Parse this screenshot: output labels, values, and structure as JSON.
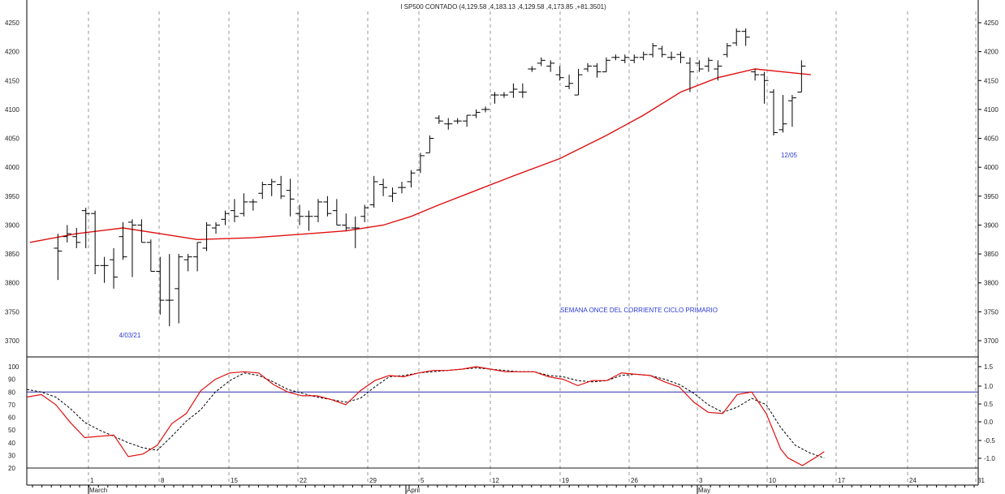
{
  "chart_data": {
    "type": "ohlc",
    "title": "I SP500 CONTADO (4,129.58 ,4,183.13 ,4,129.58 ,4,173.85 ,+81.3501)",
    "x_month_labels": [
      "March",
      "April",
      "May"
    ],
    "x_day_labels": [
      "1",
      "8",
      "15",
      "22",
      "29",
      "5",
      "12",
      "19",
      "26",
      "3",
      "10",
      "17",
      "24",
      "31"
    ],
    "price_axis": {
      "ylim": [
        3670,
        4280
      ],
      "ticks": [
        3700,
        3750,
        3800,
        3850,
        3900,
        3950,
        4000,
        4050,
        4100,
        4150,
        4200,
        4250
      ]
    },
    "annotations": [
      "4/03/21",
      "12/05",
      "SEMANA ONCE DEL CORRIENTE CICLO PRIMARIO"
    ],
    "colors": {
      "ohlc": "#000000",
      "moving_average": "#e01010",
      "stoch_k": "#e01010",
      "stoch_d": "#000000",
      "levels": "#2a2aa8",
      "annotation": "#2a3bd6"
    },
    "ohlc": [
      [
        3,
        3860,
        3885,
        3805,
        3855
      ],
      [
        4,
        3880,
        3900,
        3870,
        3885
      ],
      [
        5,
        3880,
        3895,
        3860,
        3870
      ],
      [
        6,
        3925,
        3930,
        3860,
        3920
      ],
      [
        7,
        3920,
        3925,
        3815,
        3830
      ],
      [
        8,
        3830,
        3845,
        3800,
        3830
      ],
      [
        9,
        3840,
        3860,
        3790,
        3810
      ],
      [
        10,
        3880,
        3905,
        3840,
        3845
      ],
      [
        11,
        3905,
        3910,
        3810,
        3900
      ],
      [
        12,
        3900,
        3910,
        3870,
        3870
      ],
      [
        13,
        3870,
        3875,
        3820,
        3820
      ],
      [
        14,
        3820,
        3845,
        3745,
        3770
      ],
      [
        15,
        3770,
        3850,
        3725,
        3770
      ],
      [
        16,
        3790,
        3850,
        3730,
        3845
      ],
      [
        17,
        3840,
        3850,
        3820,
        3845
      ],
      [
        18,
        3845,
        3870,
        3820,
        3870
      ],
      [
        19,
        3860,
        3905,
        3855,
        3900
      ],
      [
        20,
        3895,
        3905,
        3885,
        3900
      ],
      [
        21,
        3910,
        3925,
        3900,
        3920
      ],
      [
        22,
        3925,
        3945,
        3905,
        3915
      ],
      [
        23,
        3920,
        3955,
        3915,
        3940
      ],
      [
        24,
        3940,
        3945,
        3925,
        3940
      ],
      [
        25,
        3955,
        3975,
        3945,
        3970
      ],
      [
        26,
        3970,
        3980,
        3950,
        3975
      ],
      [
        27,
        3970,
        3985,
        3945,
        3950
      ],
      [
        28,
        3960,
        3980,
        3915,
        3945
      ],
      [
        29,
        3920,
        3935,
        3900,
        3915
      ],
      [
        30,
        3915,
        3925,
        3890,
        3915
      ],
      [
        31,
        3915,
        3945,
        3905,
        3940
      ],
      [
        32,
        3940,
        3950,
        3915,
        3920
      ],
      [
        33,
        3925,
        3945,
        3900,
        3900
      ],
      [
        34,
        3900,
        3920,
        3890,
        3895
      ],
      [
        35,
        3895,
        3915,
        3860,
        3895
      ],
      [
        36,
        3915,
        3935,
        3905,
        3930
      ],
      [
        37,
        3935,
        3985,
        3930,
        3975
      ],
      [
        38,
        3970,
        3980,
        3950,
        3965
      ],
      [
        39,
        3950,
        3965,
        3940,
        3955
      ],
      [
        40,
        3965,
        3975,
        3955,
        3965
      ],
      [
        41,
        3975,
        3995,
        3965,
        3990
      ],
      [
        42,
        3995,
        4025,
        3990,
        4020
      ],
      [
        43,
        4025,
        4055,
        4025,
        4050
      ],
      [
        44,
        4085,
        4090,
        4075,
        4080
      ],
      [
        45,
        4075,
        4085,
        4065,
        4075
      ],
      [
        46,
        4080,
        4085,
        4075,
        4080
      ],
      [
        47,
        4080,
        4090,
        4070,
        4090
      ],
      [
        48,
        4090,
        4100,
        4085,
        4095
      ],
      [
        49,
        4100,
        4105,
        4095,
        4100
      ],
      [
        50,
        4125,
        4130,
        4110,
        4125
      ],
      [
        51,
        4125,
        4130,
        4120,
        4125
      ],
      [
        52,
        4130,
        4145,
        4120,
        4135
      ],
      [
        53,
        4130,
        4145,
        4120,
        4130
      ],
      [
        54,
        4170,
        4175,
        4165,
        4170
      ],
      [
        55,
        4180,
        4190,
        4175,
        4185
      ],
      [
        56,
        4175,
        4185,
        4165,
        4180
      ],
      [
        57,
        4160,
        4175,
        4150,
        4155
      ],
      [
        58,
        4140,
        4160,
        4135,
        4145
      ],
      [
        59,
        4125,
        4170,
        4125,
        4160
      ],
      [
        60,
        4170,
        4180,
        4165,
        4175
      ],
      [
        61,
        4175,
        4180,
        4155,
        4165
      ],
      [
        62,
        4165,
        4190,
        4165,
        4185
      ],
      [
        63,
        4190,
        4195,
        4185,
        4190
      ],
      [
        64,
        4185,
        4195,
        4180,
        4190
      ],
      [
        65,
        4185,
        4195,
        4180,
        4190
      ],
      [
        66,
        4190,
        4200,
        4185,
        4195
      ],
      [
        67,
        4195,
        4215,
        4190,
        4210
      ],
      [
        68,
        4205,
        4210,
        4190,
        4195
      ],
      [
        69,
        4190,
        4200,
        4185,
        4190
      ],
      [
        70,
        4195,
        4200,
        4180,
        4190
      ],
      [
        71,
        4180,
        4190,
        4130,
        4165
      ],
      [
        72,
        4180,
        4185,
        4165,
        4170
      ],
      [
        73,
        4175,
        4190,
        4165,
        4185
      ],
      [
        74,
        4170,
        4185,
        4150,
        4175
      ],
      [
        75,
        4195,
        4215,
        4190,
        4210
      ],
      [
        76,
        4215,
        4240,
        4210,
        4235
      ],
      [
        77,
        4235,
        4240,
        4210,
        4225
      ],
      [
        78,
        4165,
        4170,
        4150,
        4160
      ],
      [
        79,
        4160,
        4165,
        4110,
        4150
      ],
      [
        80,
        4130,
        4135,
        4055,
        4060
      ],
      [
        81,
        4065,
        4125,
        4060,
        4075
      ],
      [
        82,
        4115,
        4125,
        4070,
        4120
      ],
      [
        83,
        4130,
        4185,
        4130,
        4175
      ]
    ],
    "moving_average": [
      [
        0,
        3870
      ],
      [
        5,
        3885
      ],
      [
        10,
        3895
      ],
      [
        14,
        3885
      ],
      [
        18,
        3875
      ],
      [
        24,
        3878
      ],
      [
        30,
        3885
      ],
      [
        34,
        3890
      ],
      [
        38,
        3900
      ],
      [
        41,
        3915
      ],
      [
        44,
        3935
      ],
      [
        48,
        3960
      ],
      [
        52,
        3985
      ],
      [
        57,
        4015
      ],
      [
        62,
        4055
      ],
      [
        66,
        4090
      ],
      [
        70,
        4130
      ],
      [
        74,
        4155
      ],
      [
        78,
        4170
      ],
      [
        81,
        4165
      ],
      [
        84,
        4160
      ]
    ],
    "stochastic": {
      "left_ticks": [
        20,
        30,
        40,
        50,
        60,
        70,
        80,
        90,
        100
      ],
      "right_ticks": [
        "1.5",
        "1.0",
        "0.5",
        "0.0",
        "-0.5",
        "-1.0"
      ],
      "levels": [
        80,
        20
      ],
      "k": [
        [
          0,
          76
        ],
        [
          2,
          78
        ],
        [
          4,
          70
        ],
        [
          6,
          56
        ],
        [
          8,
          44
        ],
        [
          10,
          45
        ],
        [
          12,
          46
        ],
        [
          14,
          29
        ],
        [
          16,
          31
        ],
        [
          18,
          38
        ],
        [
          20,
          55
        ],
        [
          22,
          63
        ],
        [
          24,
          81
        ],
        [
          26,
          90
        ],
        [
          28,
          95
        ],
        [
          30,
          96
        ],
        [
          32,
          95
        ],
        [
          34,
          86
        ],
        [
          36,
          80
        ],
        [
          38,
          77
        ],
        [
          40,
          77
        ],
        [
          42,
          74
        ],
        [
          44,
          70
        ],
        [
          46,
          81
        ],
        [
          48,
          89
        ],
        [
          50,
          93
        ],
        [
          52,
          92
        ],
        [
          54,
          95
        ],
        [
          56,
          97
        ],
        [
          58,
          97
        ],
        [
          60,
          98
        ],
        [
          62,
          100
        ],
        [
          64,
          98
        ],
        [
          66,
          96
        ],
        [
          68,
          96
        ],
        [
          70,
          96
        ],
        [
          72,
          92
        ],
        [
          74,
          90
        ],
        [
          76,
          85
        ],
        [
          78,
          89
        ],
        [
          80,
          89
        ],
        [
          82,
          95
        ],
        [
          84,
          94
        ],
        [
          86,
          93
        ],
        [
          88,
          88
        ],
        [
          90,
          84
        ],
        [
          92,
          72
        ],
        [
          94,
          64
        ],
        [
          96,
          63
        ],
        [
          98,
          78
        ],
        [
          100,
          80
        ],
        [
          102,
          63
        ],
        [
          104,
          35
        ],
        [
          105,
          28
        ],
        [
          107,
          22
        ],
        [
          109,
          29
        ],
        [
          110,
          33
        ]
      ],
      "d": [
        [
          0,
          82
        ],
        [
          2,
          80
        ],
        [
          4,
          76
        ],
        [
          6,
          67
        ],
        [
          8,
          56
        ],
        [
          10,
          50
        ],
        [
          12,
          45
        ],
        [
          14,
          40
        ],
        [
          16,
          36
        ],
        [
          18,
          34
        ],
        [
          20,
          45
        ],
        [
          22,
          57
        ],
        [
          24,
          66
        ],
        [
          26,
          80
        ],
        [
          28,
          89
        ],
        [
          30,
          95
        ],
        [
          32,
          93
        ],
        [
          34,
          88
        ],
        [
          36,
          82
        ],
        [
          38,
          79
        ],
        [
          40,
          76
        ],
        [
          42,
          74
        ],
        [
          44,
          72
        ],
        [
          46,
          75
        ],
        [
          48,
          84
        ],
        [
          50,
          92
        ],
        [
          52,
          93
        ],
        [
          54,
          95
        ],
        [
          56,
          96
        ],
        [
          58,
          97
        ],
        [
          60,
          98
        ],
        [
          62,
          99
        ],
        [
          64,
          98
        ],
        [
          66,
          97
        ],
        [
          68,
          96
        ],
        [
          70,
          96
        ],
        [
          72,
          93
        ],
        [
          74,
          92
        ],
        [
          76,
          89
        ],
        [
          78,
          88
        ],
        [
          80,
          89
        ],
        [
          82,
          93
        ],
        [
          84,
          94
        ],
        [
          86,
          93
        ],
        [
          88,
          90
        ],
        [
          90,
          86
        ],
        [
          92,
          79
        ],
        [
          94,
          70
        ],
        [
          96,
          64
        ],
        [
          98,
          68
        ],
        [
          100,
          75
        ],
        [
          102,
          70
        ],
        [
          104,
          52
        ],
        [
          106,
          38
        ],
        [
          108,
          32
        ],
        [
          110,
          28
        ]
      ]
    }
  }
}
